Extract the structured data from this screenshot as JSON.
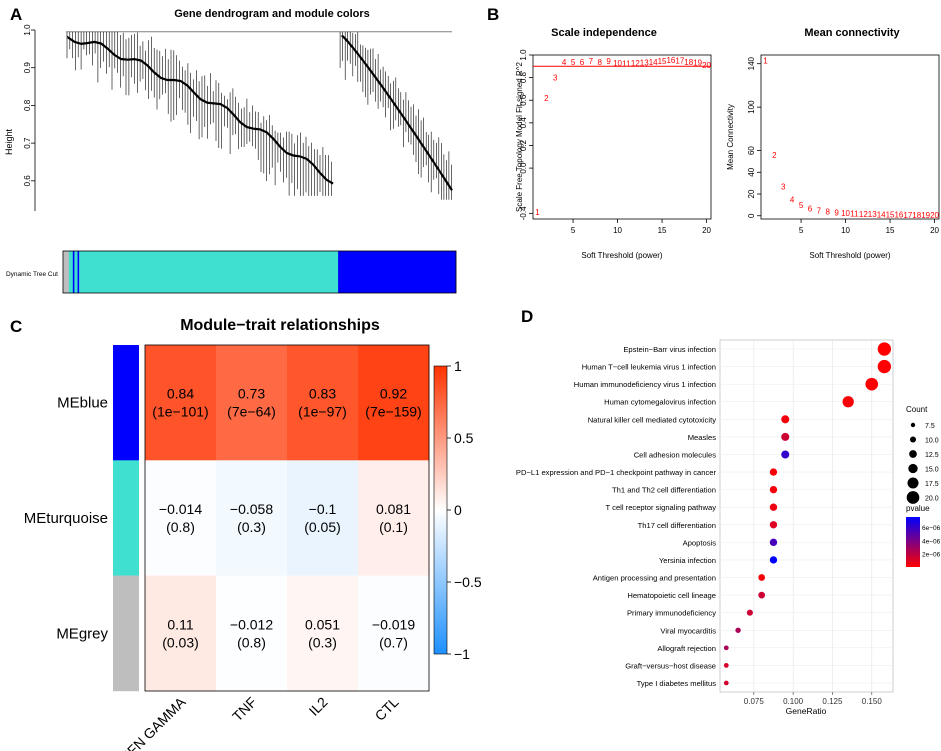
{
  "panels": {
    "a": "A",
    "b": "B",
    "c": "C",
    "d": "D"
  },
  "chart_data": [
    {
      "panel": "A",
      "type": "dendrogram",
      "title": "Gene dendrogram and module colors",
      "ylabel": "Height",
      "ylim": [
        0.52,
        1.0
      ],
      "yticks": [
        0.6,
        0.7,
        0.8,
        0.9,
        1.0
      ],
      "ytick_labels": [
        "0.6",
        "0.7",
        "0.8",
        "0.9",
        "1.0"
      ],
      "color_bar_label": "Dynamic Tree Cut",
      "modules": [
        {
          "name": "grey",
          "color": "#bebebe",
          "fraction": 0.015
        },
        {
          "name": "turquoise-left",
          "color": "#40e0d0",
          "fraction": 0.01
        },
        {
          "name": "blue-streak",
          "color": "#0000ff",
          "fraction": 0.004
        },
        {
          "name": "turquoise-streak",
          "color": "#40e0d0",
          "fraction": 0.008
        },
        {
          "name": "blue-streak2",
          "color": "#0000ff",
          "fraction": 0.004
        },
        {
          "name": "turquoise",
          "color": "#40e0d0",
          "fraction": 0.659
        },
        {
          "name": "blue",
          "color": "#0000ff",
          "fraction": 0.3
        }
      ]
    },
    {
      "panel": "B-left",
      "type": "scatter",
      "title": "Scale independence",
      "xlabel": "Soft Threshold (power)",
      "ylabel": "Scale Free Topology Model Fit,signed R^2",
      "xlim": [
        0.5,
        20.5
      ],
      "ylim": [
        -0.45,
        1.0
      ],
      "xticks": [
        5,
        10,
        15,
        20
      ],
      "yticks": [
        -0.4,
        0.0,
        0.2,
        0.4,
        0.6,
        0.8,
        1.0
      ],
      "ytick_labels": [
        "-0.4",
        "0.0",
        "0.2",
        "0.4",
        "0.6",
        "0.8",
        "1.0"
      ],
      "cutoff_line": 0.9,
      "cutoff_color": "#ff0000",
      "point_color": "#ff0000",
      "x": [
        1,
        2,
        3,
        4,
        5,
        6,
        7,
        8,
        9,
        10,
        11,
        12,
        13,
        14,
        15,
        16,
        17,
        18,
        19,
        20
      ],
      "y": [
        -0.39,
        0.62,
        0.8,
        0.94,
        0.94,
        0.94,
        0.945,
        0.94,
        0.945,
        0.93,
        0.925,
        0.93,
        0.935,
        0.94,
        0.945,
        0.955,
        0.95,
        0.94,
        0.935,
        0.91
      ]
    },
    {
      "panel": "B-right",
      "type": "scatter",
      "title": "Mean connectivity",
      "xlabel": "Soft Threshold (power)",
      "ylabel": "Mean Connectivity",
      "xlim": [
        0.5,
        20.5
      ],
      "ylim": [
        -3,
        148
      ],
      "xticks": [
        5,
        10,
        15,
        20
      ],
      "yticks": [
        0,
        20,
        40,
        60,
        100,
        140
      ],
      "point_color": "#ff0000",
      "x": [
        1,
        2,
        3,
        4,
        5,
        6,
        7,
        8,
        9,
        10,
        11,
        12,
        13,
        14,
        15,
        16,
        17,
        18,
        19,
        20
      ],
      "y": [
        143,
        56,
        27,
        15,
        10,
        6.8,
        5,
        3.8,
        3,
        2.5,
        2,
        1.7,
        1.5,
        1.3,
        1.1,
        1,
        0.9,
        0.8,
        0.7,
        0.6
      ]
    },
    {
      "panel": "C",
      "type": "heatmap",
      "title": "Module−trait relationships",
      "rows": [
        "MEblue",
        "MEturquoise",
        "MEgrey"
      ],
      "row_colors": [
        "#0000ff",
        "#40e0d0",
        "#bebebe"
      ],
      "columns": [
        "IFN GAMMA",
        "TNF",
        "IL2",
        "CTL"
      ],
      "values": [
        [
          0.84,
          0.73,
          0.83,
          0.92
        ],
        [
          -0.014,
          -0.058,
          -0.1,
          0.081
        ],
        [
          0.11,
          -0.012,
          0.051,
          -0.019
        ]
      ],
      "cell_labels": [
        [
          "0.84",
          "0.73",
          "0.83",
          "0.92"
        ],
        [
          "−0.014",
          "−0.058",
          "−0.1",
          "0.081"
        ],
        [
          "0.11",
          "−0.012",
          "0.051",
          "−0.019"
        ]
      ],
      "pvalue_labels": [
        [
          "(1e−101)",
          "(7e−64)",
          "(1e−97)",
          "(7e−159)"
        ],
        [
          "(0.8)",
          "(0.3)",
          "(0.05)",
          "(0.1)"
        ],
        [
          "(0.03)",
          "(0.8)",
          "(0.3)",
          "(0.7)"
        ]
      ],
      "color_scale": {
        "min": -1,
        "max": 1,
        "low": "#1e90ff",
        "mid": "#ffffff",
        "high": "#ff3300"
      },
      "legend_ticks": [
        1,
        0.5,
        0,
        -0.5,
        -1
      ],
      "legend_tick_labels": [
        "1",
        "0.5",
        "0",
        "−0.5",
        "−1"
      ]
    },
    {
      "panel": "D",
      "type": "scatter",
      "title": "",
      "xlabel": "GeneRatio",
      "xlim": [
        0.0535,
        0.1635
      ],
      "xticks": [
        0.075,
        0.1,
        0.125,
        0.15
      ],
      "xtick_labels": [
        "0.075",
        "0.100",
        "0.125",
        "0.150"
      ],
      "categories": [
        "Epstein−Barr virus infection",
        "Human T−cell leukemia virus 1 infection",
        "Human immunodeficiency virus 1 infection",
        "Human cytomegalovirus infection",
        "Natural killer cell mediated cytotoxicity",
        "Measles",
        "Cell adhesion molecules",
        "PD−L1 expression and PD−1 checkpoint pathway in cancer",
        "Th1 and Th2 cell differentiation",
        "T cell receptor signaling pathway",
        "Th17 cell differentiation",
        "Apoptosis",
        "Yersinia infection",
        "Antigen processing and presentation",
        "Hematopoietic cell lineage",
        "Primary immunodeficiency",
        "Viral myocarditis",
        "Allograft rejection",
        "Graft−versus−host disease",
        "Type I diabetes mellitus"
      ],
      "gene_ratio": [
        0.158,
        0.158,
        0.15,
        0.135,
        0.095,
        0.095,
        0.095,
        0.0875,
        0.0875,
        0.0875,
        0.0875,
        0.0875,
        0.0875,
        0.08,
        0.08,
        0.0725,
        0.065,
        0.0575,
        0.0575,
        0.0575
      ],
      "count": [
        21,
        21,
        20,
        18,
        13,
        13,
        13,
        12,
        12,
        12,
        12,
        12,
        12,
        11,
        11,
        10,
        9,
        8,
        8,
        8
      ],
      "pvalue": [
        1e-08,
        5e-08,
        1e-07,
        2e-07,
        3e-07,
        1.5e-06,
        6e-06,
        2e-07,
        3e-07,
        5e-07,
        1e-06,
        5.5e-06,
        7.5e-06,
        2e-07,
        1.5e-06,
        1.5e-06,
        2.5e-06,
        2.5e-06,
        1.2e-06,
        1.3e-06
      ],
      "size_legend": {
        "title": "Count",
        "values": [
          7.5,
          10,
          12.5,
          15,
          17.5,
          20
        ],
        "labels": [
          "7.5",
          "10.0",
          "12.5",
          "15.0",
          "17.5",
          "20.0"
        ]
      },
      "color_legend": {
        "title": "pvalue",
        "min": 0,
        "max": 7.5e-06,
        "ticks": [
          6e-06,
          4e-06,
          2e-06
        ],
        "labels": [
          "6e−06",
          "4e−06",
          "2e−06"
        ],
        "low": "#ff0000",
        "high": "#0000ff"
      }
    }
  ]
}
